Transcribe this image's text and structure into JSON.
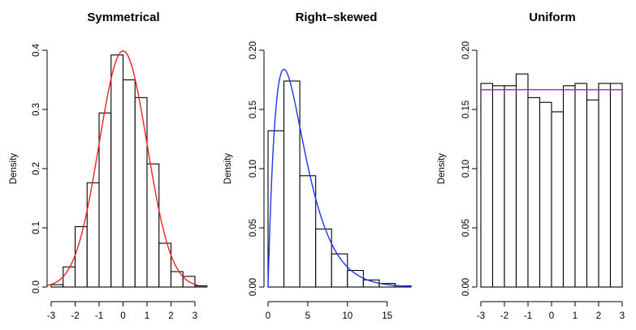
{
  "chart_data": [
    {
      "type": "histogram",
      "title": "Symmetrical",
      "ylabel": "Density",
      "xlabel": "",
      "xlim": [
        -3,
        3
      ],
      "ylim": [
        0,
        0.4
      ],
      "x_ticks": [
        -3,
        -2,
        -1,
        0,
        1,
        2,
        3
      ],
      "x_tick_labels": [
        "-3",
        "-2",
        "-1",
        "0",
        "1",
        "2",
        "3"
      ],
      "y_ticks": [
        0.0,
        0.1,
        0.2,
        0.3,
        0.4
      ],
      "y_tick_labels": [
        "0.0",
        "0.1",
        "0.2",
        "0.3",
        "0.4"
      ],
      "bins": [
        {
          "x0": -3.0,
          "x1": -2.5,
          "density": 0.004
        },
        {
          "x0": -2.5,
          "x1": -2.0,
          "density": 0.034
        },
        {
          "x0": -2.0,
          "x1": -1.5,
          "density": 0.102
        },
        {
          "x0": -1.5,
          "x1": -1.0,
          "density": 0.176
        },
        {
          "x0": -1.0,
          "x1": -0.5,
          "density": 0.294
        },
        {
          "x0": -0.5,
          "x1": 0.0,
          "density": 0.392
        },
        {
          "x0": 0.0,
          "x1": 0.5,
          "density": 0.35
        },
        {
          "x0": 0.5,
          "x1": 1.0,
          "density": 0.32
        },
        {
          "x0": 1.0,
          "x1": 1.5,
          "density": 0.208
        },
        {
          "x0": 1.5,
          "x1": 2.0,
          "density": 0.074
        },
        {
          "x0": 2.0,
          "x1": 2.5,
          "density": 0.026
        },
        {
          "x0": 2.5,
          "x1": 3.0,
          "density": 0.018
        },
        {
          "x0": 3.0,
          "x1": 3.5,
          "density": 0.002
        }
      ],
      "curve": {
        "distribution": "normal",
        "mean": 0,
        "sd": 1,
        "color": "#ee2222"
      }
    },
    {
      "type": "histogram",
      "title": "Right–skewed",
      "ylabel": "Density",
      "xlabel": "",
      "xlim": [
        0,
        18
      ],
      "ylim": [
        0,
        0.2
      ],
      "x_ticks": [
        0,
        5,
        10,
        15
      ],
      "x_tick_labels": [
        "0",
        "5",
        "10",
        "15"
      ],
      "y_ticks": [
        0.0,
        0.05,
        0.1,
        0.15,
        0.2
      ],
      "y_tick_labels": [
        "0.00",
        "0.05",
        "0.10",
        "0.15",
        "0.20"
      ],
      "bins": [
        {
          "x0": 0,
          "x1": 2,
          "density": 0.132
        },
        {
          "x0": 2,
          "x1": 4,
          "density": 0.174
        },
        {
          "x0": 4,
          "x1": 6,
          "density": 0.094
        },
        {
          "x0": 6,
          "x1": 8,
          "density": 0.049
        },
        {
          "x0": 8,
          "x1": 10,
          "density": 0.028
        },
        {
          "x0": 10,
          "x1": 12,
          "density": 0.014
        },
        {
          "x0": 12,
          "x1": 14,
          "density": 0.006
        },
        {
          "x0": 14,
          "x1": 16,
          "density": 0.003
        },
        {
          "x0": 16,
          "x1": 18,
          "density": 0.001
        }
      ],
      "curve": {
        "distribution": "gamma",
        "shape": 2,
        "scale": 2,
        "color": "#2233ee"
      }
    },
    {
      "type": "histogram",
      "title": "Uniform",
      "ylabel": "Density",
      "xlabel": "",
      "xlim": [
        -3,
        3
      ],
      "ylim": [
        0,
        0.2
      ],
      "x_ticks": [
        -3,
        -2,
        -1,
        0,
        1,
        2,
        3
      ],
      "x_tick_labels": [
        "-3",
        "-2",
        "-1",
        "0",
        "1",
        "2",
        "3"
      ],
      "y_ticks": [
        0.0,
        0.05,
        0.1,
        0.15,
        0.2
      ],
      "y_tick_labels": [
        "0.00",
        "0.05",
        "0.10",
        "0.15",
        "0.20"
      ],
      "bins": [
        {
          "x0": -3.0,
          "x1": -2.5,
          "density": 0.172
        },
        {
          "x0": -2.5,
          "x1": -2.0,
          "density": 0.17
        },
        {
          "x0": -2.0,
          "x1": -1.5,
          "density": 0.17
        },
        {
          "x0": -1.5,
          "x1": -1.0,
          "density": 0.18
        },
        {
          "x0": -1.0,
          "x1": -0.5,
          "density": 0.16
        },
        {
          "x0": -0.5,
          "x1": 0.0,
          "density": 0.156
        },
        {
          "x0": 0.0,
          "x1": 0.5,
          "density": 0.148
        },
        {
          "x0": 0.5,
          "x1": 1.0,
          "density": 0.17
        },
        {
          "x0": 1.0,
          "x1": 1.5,
          "density": 0.172
        },
        {
          "x0": 1.5,
          "x1": 2.0,
          "density": 0.158
        },
        {
          "x0": 2.0,
          "x1": 2.5,
          "density": 0.172
        },
        {
          "x0": 2.5,
          "x1": 3.0,
          "density": 0.172
        }
      ],
      "curve": {
        "distribution": "uniform",
        "density": 0.1667,
        "color": "#9933cc"
      }
    }
  ]
}
